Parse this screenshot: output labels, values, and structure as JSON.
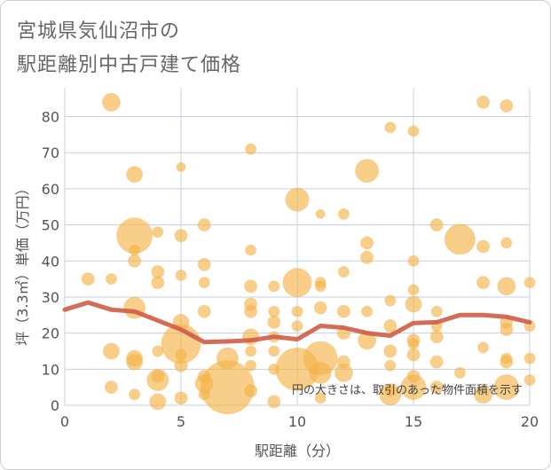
{
  "title_line1": "宮城県気仙沼市の",
  "title_line2": "駅距離別中古戸建て価格",
  "chart_data": {
    "type": "scatter",
    "title": "宮城県気仙沼市の駅距離別中古戸建て価格",
    "xlabel": "駅距離（分）",
    "ylabel": "坪（3.3㎡）単価（万円）",
    "xlim": [
      0,
      20
    ],
    "ylim": [
      0,
      88
    ],
    "xticks": [
      0,
      5,
      10,
      15,
      20
    ],
    "yticks": [
      0,
      10,
      20,
      30,
      40,
      50,
      60,
      70,
      80
    ],
    "grid": true,
    "annotation": "円の大きさは、取引のあった物件面積を示す",
    "colors": {
      "bubble": "#f4b34a",
      "line": "#d0604a",
      "grid": "#c5d0dc"
    },
    "bubbles": [
      {
        "x": 2,
        "y": 84,
        "size": 10
      },
      {
        "x": 18,
        "y": 84,
        "size": 7
      },
      {
        "x": 19,
        "y": 83,
        "size": 7
      },
      {
        "x": 14,
        "y": 77,
        "size": 6
      },
      {
        "x": 15,
        "y": 76,
        "size": 6
      },
      {
        "x": 8,
        "y": 71,
        "size": 6
      },
      {
        "x": 5,
        "y": 66,
        "size": 5
      },
      {
        "x": 13,
        "y": 65,
        "size": 13
      },
      {
        "x": 3,
        "y": 64,
        "size": 9
      },
      {
        "x": 10,
        "y": 57,
        "size": 13
      },
      {
        "x": 11,
        "y": 53,
        "size": 5
      },
      {
        "x": 12,
        "y": 53,
        "size": 6
      },
      {
        "x": 6,
        "y": 50,
        "size": 7
      },
      {
        "x": 16,
        "y": 50,
        "size": 7
      },
      {
        "x": 3,
        "y": 47,
        "size": 20
      },
      {
        "x": 4,
        "y": 48,
        "size": 6
      },
      {
        "x": 5,
        "y": 47,
        "size": 7
      },
      {
        "x": 17,
        "y": 46,
        "size": 17
      },
      {
        "x": 13,
        "y": 45,
        "size": 7
      },
      {
        "x": 19,
        "y": 45,
        "size": 6
      },
      {
        "x": 18,
        "y": 44,
        "size": 7
      },
      {
        "x": 8,
        "y": 43,
        "size": 6
      },
      {
        "x": 3,
        "y": 43,
        "size": 6
      },
      {
        "x": 13,
        "y": 41,
        "size": 7
      },
      {
        "x": 3,
        "y": 40,
        "size": 7
      },
      {
        "x": 15,
        "y": 40,
        "size": 6
      },
      {
        "x": 6,
        "y": 39,
        "size": 7
      },
      {
        "x": 4,
        "y": 37,
        "size": 7
      },
      {
        "x": 12,
        "y": 37,
        "size": 6
      },
      {
        "x": 5,
        "y": 36,
        "size": 6
      },
      {
        "x": 1,
        "y": 35,
        "size": 7
      },
      {
        "x": 2,
        "y": 35,
        "size": 6
      },
      {
        "x": 4,
        "y": 34,
        "size": 7
      },
      {
        "x": 6,
        "y": 34,
        "size": 6
      },
      {
        "x": 10,
        "y": 34,
        "size": 16
      },
      {
        "x": 11,
        "y": 34,
        "size": 6
      },
      {
        "x": 18,
        "y": 34,
        "size": 7
      },
      {
        "x": 20,
        "y": 34,
        "size": 6
      },
      {
        "x": 19,
        "y": 33,
        "size": 10
      },
      {
        "x": 8,
        "y": 33,
        "size": 7
      },
      {
        "x": 9,
        "y": 33,
        "size": 6
      },
      {
        "x": 11,
        "y": 33,
        "size": 6
      },
      {
        "x": 15,
        "y": 32,
        "size": 6
      },
      {
        "x": 14,
        "y": 29,
        "size": 6
      },
      {
        "x": 8,
        "y": 28,
        "size": 7
      },
      {
        "x": 3,
        "y": 27,
        "size": 12
      },
      {
        "x": 9,
        "y": 26,
        "size": 6
      },
      {
        "x": 11,
        "y": 27,
        "size": 7
      },
      {
        "x": 15,
        "y": 28,
        "size": 9
      },
      {
        "x": 16,
        "y": 26,
        "size": 6
      },
      {
        "x": 6,
        "y": 26,
        "size": 7
      },
      {
        "x": 8,
        "y": 26,
        "size": 7
      },
      {
        "x": 10,
        "y": 26,
        "size": 6
      },
      {
        "x": 12,
        "y": 26,
        "size": 7
      },
      {
        "x": 13,
        "y": 26,
        "size": 6
      },
      {
        "x": 5,
        "y": 23,
        "size": 9
      },
      {
        "x": 9,
        "y": 23,
        "size": 7
      },
      {
        "x": 10,
        "y": 22,
        "size": 6
      },
      {
        "x": 14,
        "y": 22,
        "size": 7
      },
      {
        "x": 19,
        "y": 23,
        "size": 7
      },
      {
        "x": 16,
        "y": 22,
        "size": 6
      },
      {
        "x": 20,
        "y": 22,
        "size": 6
      },
      {
        "x": 19,
        "y": 21,
        "size": 7
      },
      {
        "x": 12,
        "y": 20,
        "size": 7
      },
      {
        "x": 8,
        "y": 19,
        "size": 9
      },
      {
        "x": 9,
        "y": 19,
        "size": 6
      },
      {
        "x": 16,
        "y": 19,
        "size": 7
      },
      {
        "x": 13,
        "y": 18,
        "size": 10
      },
      {
        "x": 5,
        "y": 17,
        "size": 22
      },
      {
        "x": 15,
        "y": 18,
        "size": 7
      },
      {
        "x": 15,
        "y": 17,
        "size": 6
      },
      {
        "x": 18,
        "y": 16,
        "size": 6
      },
      {
        "x": 2,
        "y": 15,
        "size": 9
      },
      {
        "x": 4,
        "y": 15,
        "size": 6
      },
      {
        "x": 8,
        "y": 15,
        "size": 6
      },
      {
        "x": 9,
        "y": 15,
        "size": 6
      },
      {
        "x": 14,
        "y": 15,
        "size": 7
      },
      {
        "x": 15,
        "y": 14,
        "size": 7
      },
      {
        "x": 5,
        "y": 14,
        "size": 6
      },
      {
        "x": 3,
        "y": 13,
        "size": 9
      },
      {
        "x": 7,
        "y": 13,
        "size": 12
      },
      {
        "x": 11,
        "y": 13,
        "size": 19
      },
      {
        "x": 19,
        "y": 13,
        "size": 6
      },
      {
        "x": 20,
        "y": 13,
        "size": 6
      },
      {
        "x": 16,
        "y": 12,
        "size": 7
      },
      {
        "x": 19,
        "y": 12,
        "size": 7
      },
      {
        "x": 3,
        "y": 12,
        "size": 9
      },
      {
        "x": 12,
        "y": 12,
        "size": 7
      },
      {
        "x": 5,
        "y": 11,
        "size": 7
      },
      {
        "x": 14,
        "y": 11,
        "size": 6
      },
      {
        "x": 8,
        "y": 11,
        "size": 6
      },
      {
        "x": 10,
        "y": 10,
        "size": 24
      },
      {
        "x": 9,
        "y": 10,
        "size": 6
      },
      {
        "x": 11,
        "y": 9,
        "size": 12
      },
      {
        "x": 12,
        "y": 9,
        "size": 10
      },
      {
        "x": 4,
        "y": 8,
        "size": 7
      },
      {
        "x": 6,
        "y": 8,
        "size": 7
      },
      {
        "x": 15,
        "y": 8,
        "size": 7
      },
      {
        "x": 17,
        "y": 9,
        "size": 6
      },
      {
        "x": 20,
        "y": 7,
        "size": 6
      },
      {
        "x": 4,
        "y": 7,
        "size": 12
      },
      {
        "x": 6,
        "y": 6,
        "size": 10
      },
      {
        "x": 7,
        "y": 5,
        "size": 30
      },
      {
        "x": 15,
        "y": 5,
        "size": 14
      },
      {
        "x": 16,
        "y": 5,
        "size": 7
      },
      {
        "x": 19,
        "y": 5,
        "size": 14
      },
      {
        "x": 2,
        "y": 5,
        "size": 7
      },
      {
        "x": 8,
        "y": 4,
        "size": 7
      },
      {
        "x": 14,
        "y": 4,
        "size": 6
      },
      {
        "x": 18,
        "y": 3,
        "size": 10
      },
      {
        "x": 3,
        "y": 3,
        "size": 6
      },
      {
        "x": 6,
        "y": 3,
        "size": 6
      },
      {
        "x": 14,
        "y": 3,
        "size": 12
      },
      {
        "x": 5,
        "y": 2,
        "size": 7
      },
      {
        "x": 11,
        "y": 2,
        "size": 6
      },
      {
        "x": 4,
        "y": 1,
        "size": 9
      },
      {
        "x": 9,
        "y": 1,
        "size": 7
      }
    ],
    "line": {
      "x": [
        0,
        1,
        2,
        3,
        4,
        5,
        6,
        7,
        8,
        9,
        10,
        11,
        12,
        13,
        14,
        15,
        16,
        17,
        18,
        19,
        20
      ],
      "y": [
        26.5,
        28.5,
        26.5,
        26,
        23.5,
        21,
        17.5,
        17.7,
        18,
        19,
        18.3,
        22,
        21.5,
        20,
        19.3,
        22.8,
        23,
        25,
        25,
        24.5,
        23
      ]
    }
  }
}
